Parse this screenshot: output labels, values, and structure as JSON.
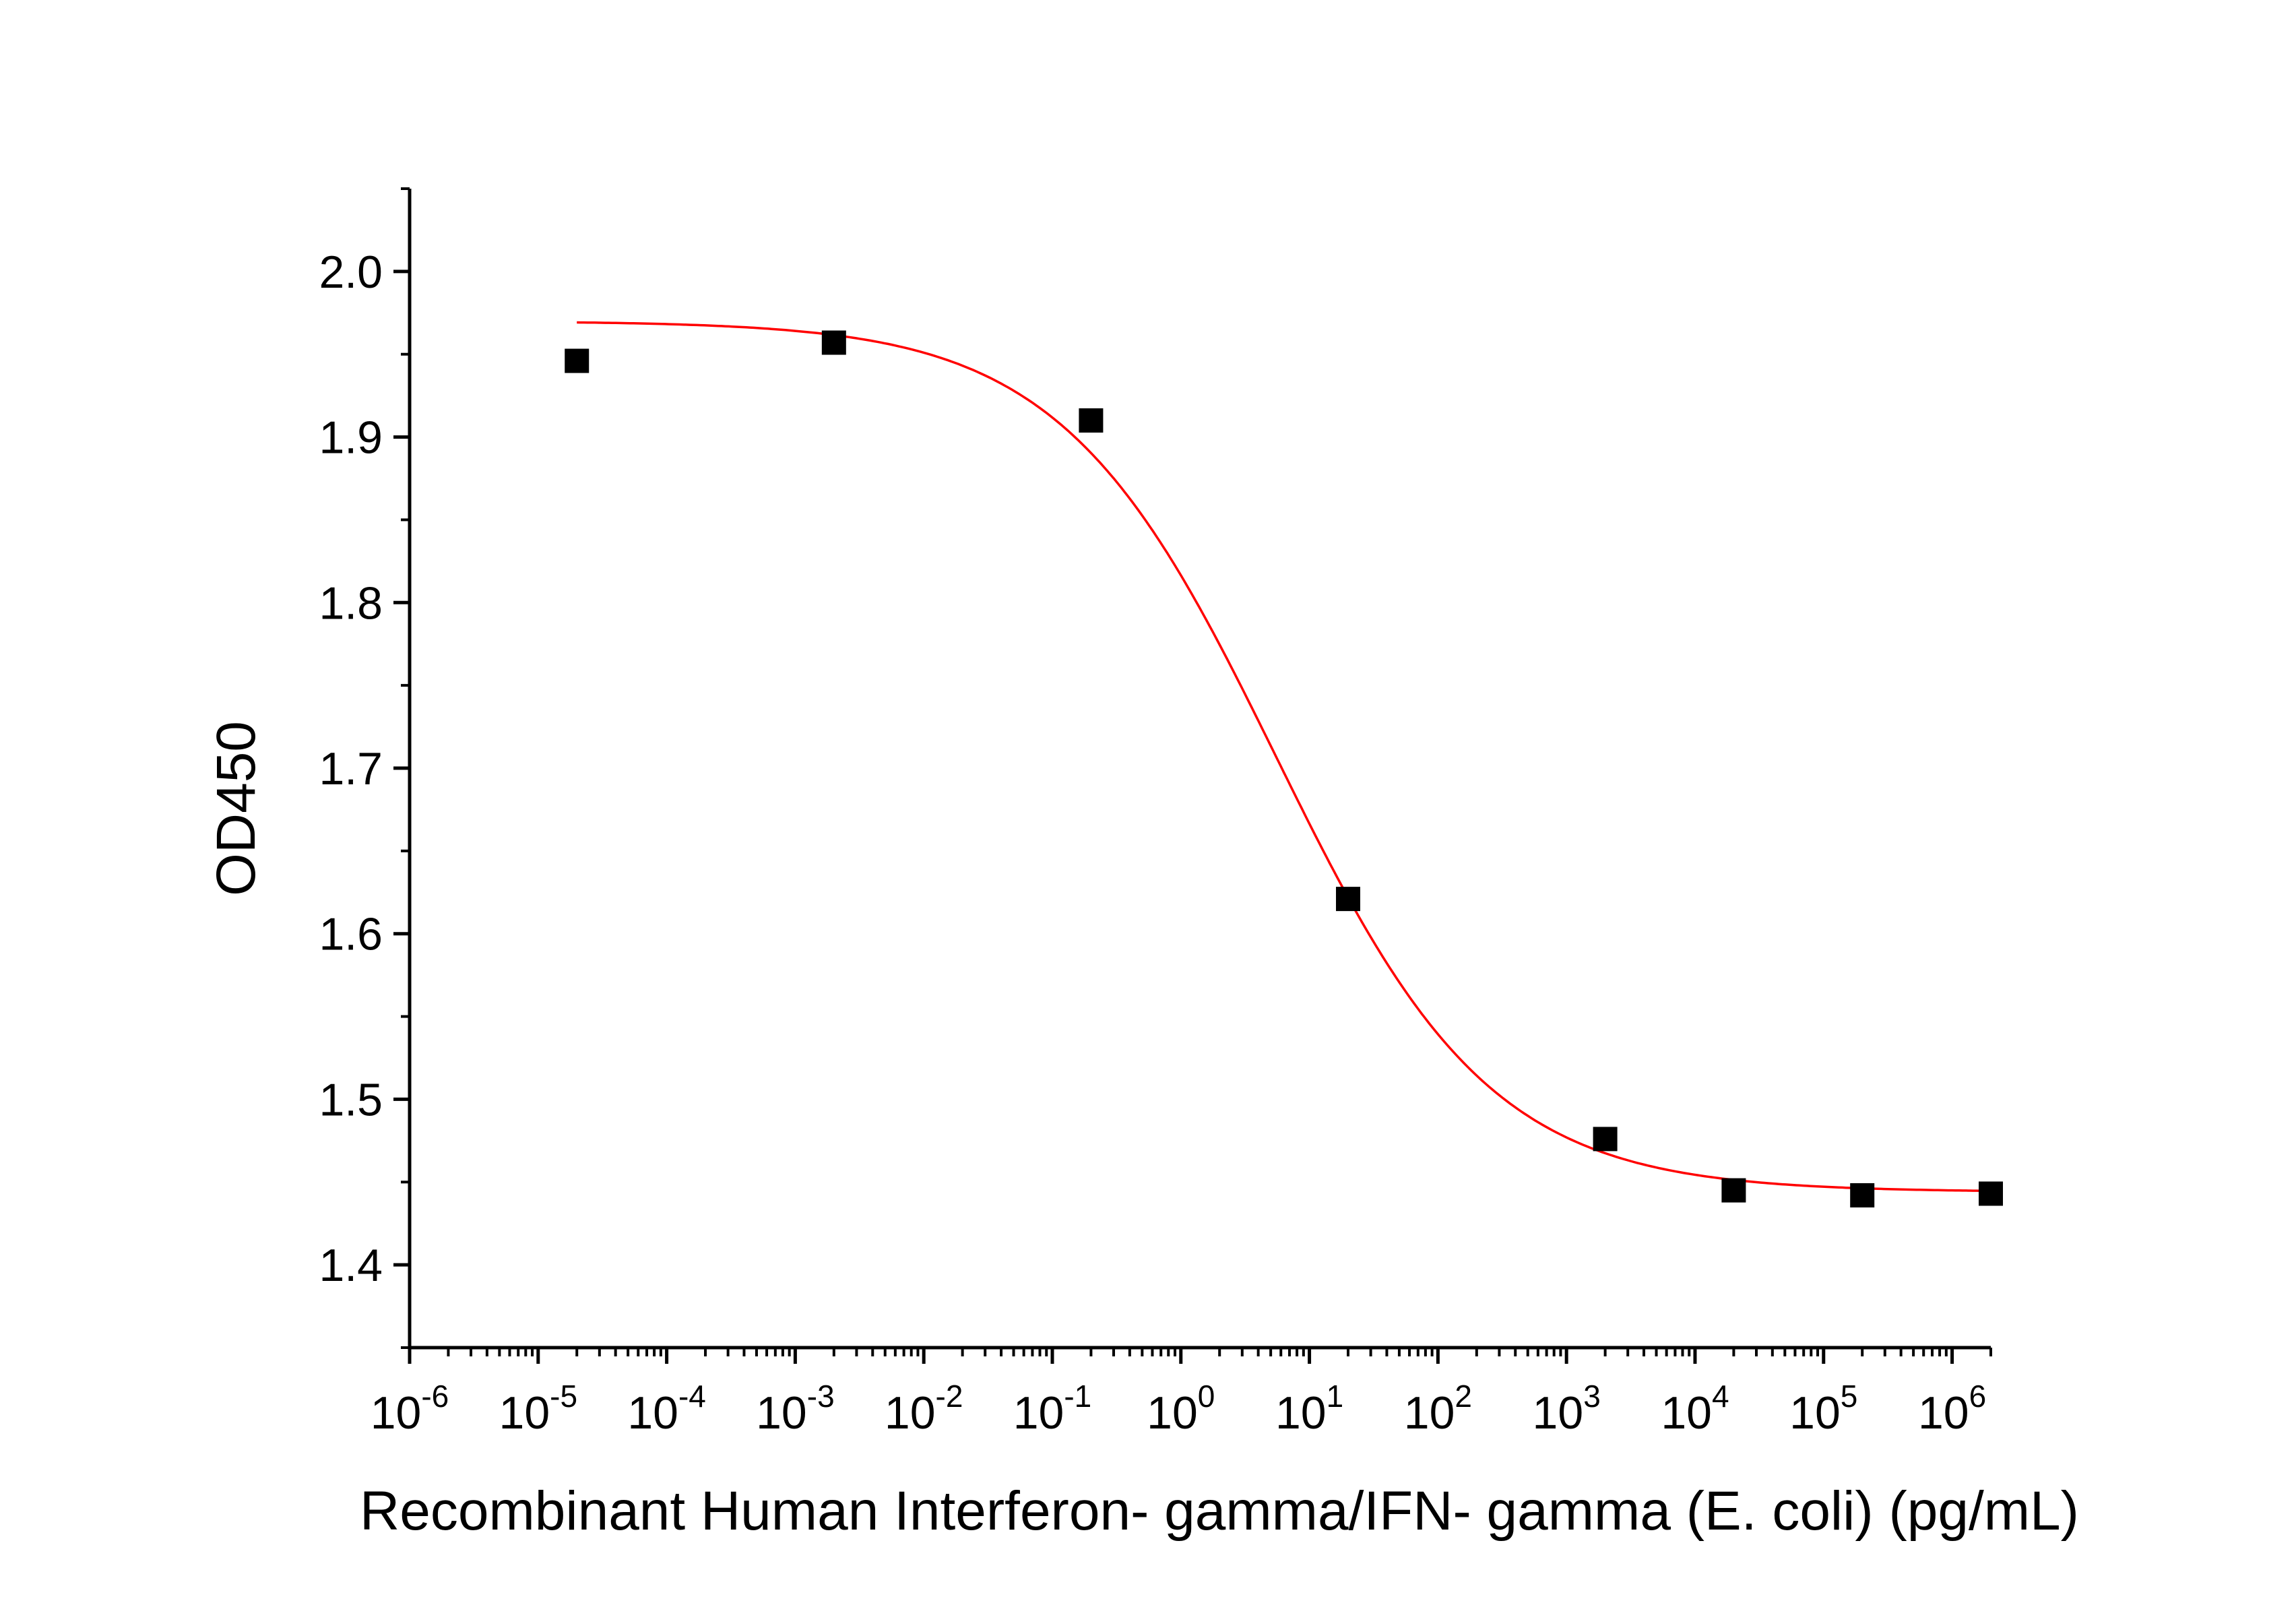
{
  "chart_data": {
    "type": "scatter",
    "xlabel": "Recombinant Human Interferon- gamma/IFN- gamma (E. coli) (pg/mL)",
    "ylabel": "OD450",
    "x_scale": "log",
    "xlim": [
      1e-06,
      2000000.0
    ],
    "ylim": [
      1.35,
      2.05
    ],
    "x_tick_exponents": [
      -6,
      -5,
      -4,
      -3,
      -2,
      -1,
      0,
      1,
      2,
      3,
      4,
      5,
      6
    ],
    "x_tick_base": "10",
    "y_ticks": [
      1.4,
      1.5,
      1.6,
      1.7,
      1.8,
      1.9,
      2.0
    ],
    "y_tick_labels": [
      "1.4",
      "1.5",
      "1.6",
      "1.7",
      "1.8",
      "1.9",
      "2.0"
    ],
    "grid": false,
    "series": [
      {
        "kind": "points",
        "marker": "square",
        "color": "#000000",
        "points": [
          {
            "x": 2e-05,
            "y": 1.946
          },
          {
            "x": 0.002,
            "y": 1.957
          },
          {
            "x": 0.2,
            "y": 1.91
          },
          {
            "x": 20,
            "y": 1.621
          },
          {
            "x": 2000,
            "y": 1.476
          },
          {
            "x": 20000,
            "y": 1.445
          },
          {
            "x": 200000,
            "y": 1.442
          },
          {
            "x": 2000000,
            "y": 1.443
          }
        ]
      },
      {
        "kind": "fit",
        "model": "4PL",
        "color": "#ff0000",
        "top": 1.97,
        "bottom": 1.444,
        "ec50": 5.5,
        "hill": 0.52,
        "x_range": [
          2e-05,
          2000000.0
        ]
      }
    ]
  }
}
